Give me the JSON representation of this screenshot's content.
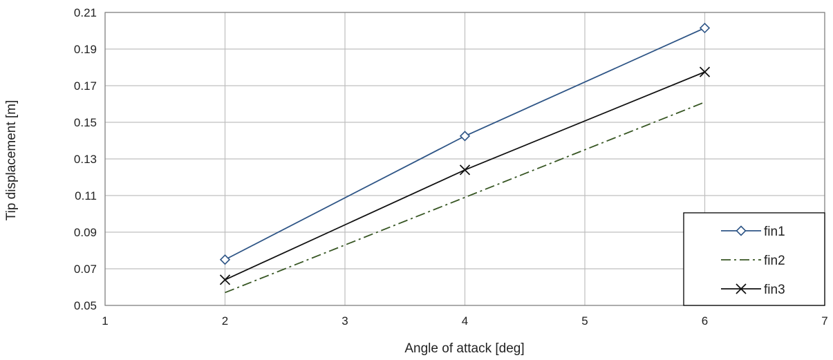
{
  "chart_data": {
    "type": "line",
    "title": "",
    "xlabel": "Angle of attack [deg]",
    "ylabel": "Tip displacement [m]",
    "xlim": [
      1,
      7
    ],
    "ylim": [
      0.05,
      0.21
    ],
    "x_ticks": [
      "1",
      "2",
      "3",
      "4",
      "5",
      "6",
      "7"
    ],
    "y_ticks": [
      "0.05",
      "0.07",
      "0.09",
      "0.11",
      "0.13",
      "0.15",
      "0.17",
      "0.19",
      "0.21"
    ],
    "grid": true,
    "legend_position": "bottom-right",
    "series": [
      {
        "name": "fin1",
        "x": [
          2,
          4,
          6
        ],
        "values": [
          0.075,
          0.1425,
          0.2015
        ],
        "color": "#2e5586",
        "line_style": "solid",
        "marker": "diamond"
      },
      {
        "name": "fin2",
        "x": [
          2,
          4,
          6
        ],
        "values": [
          0.057,
          0.109,
          0.161
        ],
        "color": "#375623",
        "line_style": "dash-dot",
        "marker": "none"
      },
      {
        "name": "fin3",
        "x": [
          2,
          4,
          6
        ],
        "values": [
          0.064,
          0.124,
          0.1775
        ],
        "color": "#111111",
        "line_style": "solid",
        "marker": "x"
      }
    ]
  }
}
